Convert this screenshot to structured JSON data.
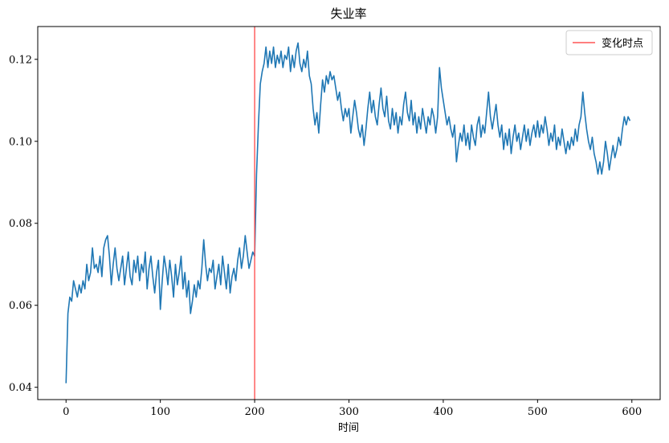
{
  "chart_data": {
    "type": "line",
    "title": "失业率",
    "xlabel": "时间",
    "ylabel": "",
    "xlim": [
      -30,
      630
    ],
    "ylim": [
      0.037,
      0.128
    ],
    "xticks": [
      0,
      100,
      200,
      300,
      400,
      500,
      600
    ],
    "yticks": [
      0.04,
      0.06,
      0.08,
      0.1,
      0.12
    ],
    "xtick_labels": [
      "0",
      "100",
      "200",
      "300",
      "400",
      "500",
      "600"
    ],
    "ytick_labels": [
      "0.04",
      "0.06",
      "0.08",
      "0.10",
      "0.12"
    ],
    "grid": false,
    "legend_position": "top-right",
    "series": [
      {
        "color": "#1f77b4",
        "points": [
          [
            0,
            0.041
          ],
          [
            2,
            0.058
          ],
          [
            4,
            0.062
          ],
          [
            6,
            0.061
          ],
          [
            8,
            0.066
          ],
          [
            10,
            0.064
          ],
          [
            12,
            0.062
          ],
          [
            14,
            0.065
          ],
          [
            16,
            0.063
          ],
          [
            18,
            0.066
          ],
          [
            20,
            0.064
          ],
          [
            22,
            0.07
          ],
          [
            24,
            0.066
          ],
          [
            26,
            0.068
          ],
          [
            28,
            0.074
          ],
          [
            30,
            0.069
          ],
          [
            32,
            0.07
          ],
          [
            34,
            0.068
          ],
          [
            36,
            0.072
          ],
          [
            38,
            0.067
          ],
          [
            40,
            0.074
          ],
          [
            42,
            0.076
          ],
          [
            44,
            0.077
          ],
          [
            46,
            0.072
          ],
          [
            48,
            0.065
          ],
          [
            50,
            0.07
          ],
          [
            52,
            0.074
          ],
          [
            54,
            0.069
          ],
          [
            56,
            0.066
          ],
          [
            58,
            0.069
          ],
          [
            60,
            0.072
          ],
          [
            62,
            0.065
          ],
          [
            64,
            0.069
          ],
          [
            66,
            0.073
          ],
          [
            68,
            0.067
          ],
          [
            70,
            0.065
          ],
          [
            72,
            0.071
          ],
          [
            74,
            0.068
          ],
          [
            76,
            0.072
          ],
          [
            78,
            0.066
          ],
          [
            80,
            0.07
          ],
          [
            82,
            0.068
          ],
          [
            84,
            0.073
          ],
          [
            86,
            0.064
          ],
          [
            88,
            0.069
          ],
          [
            90,
            0.072
          ],
          [
            92,
            0.067
          ],
          [
            94,
            0.063
          ],
          [
            96,
            0.068
          ],
          [
            98,
            0.071
          ],
          [
            100,
            0.059
          ],
          [
            102,
            0.066
          ],
          [
            104,
            0.072
          ],
          [
            106,
            0.069
          ],
          [
            108,
            0.065
          ],
          [
            110,
            0.071
          ],
          [
            112,
            0.067
          ],
          [
            114,
            0.062
          ],
          [
            116,
            0.07
          ],
          [
            118,
            0.065
          ],
          [
            120,
            0.068
          ],
          [
            122,
            0.072
          ],
          [
            124,
            0.064
          ],
          [
            126,
            0.068
          ],
          [
            128,
            0.062
          ],
          [
            130,
            0.066
          ],
          [
            132,
            0.058
          ],
          [
            134,
            0.061
          ],
          [
            136,
            0.065
          ],
          [
            138,
            0.062
          ],
          [
            140,
            0.066
          ],
          [
            142,
            0.064
          ],
          [
            144,
            0.069
          ],
          [
            146,
            0.076
          ],
          [
            148,
            0.07
          ],
          [
            150,
            0.066
          ],
          [
            152,
            0.069
          ],
          [
            154,
            0.068
          ],
          [
            156,
            0.071
          ],
          [
            158,
            0.064
          ],
          [
            160,
            0.067
          ],
          [
            162,
            0.07
          ],
          [
            164,
            0.065
          ],
          [
            166,
            0.072
          ],
          [
            168,
            0.068
          ],
          [
            170,
            0.064
          ],
          [
            172,
            0.07
          ],
          [
            174,
            0.063
          ],
          [
            176,
            0.067
          ],
          [
            178,
            0.069
          ],
          [
            180,
            0.066
          ],
          [
            182,
            0.071
          ],
          [
            184,
            0.074
          ],
          [
            186,
            0.069
          ],
          [
            188,
            0.072
          ],
          [
            190,
            0.077
          ],
          [
            192,
            0.073
          ],
          [
            194,
            0.069
          ],
          [
            196,
            0.071
          ],
          [
            198,
            0.073
          ],
          [
            200,
            0.072
          ],
          [
            202,
            0.092
          ],
          [
            204,
            0.104
          ],
          [
            206,
            0.114
          ],
          [
            208,
            0.117
          ],
          [
            210,
            0.119
          ],
          [
            212,
            0.123
          ],
          [
            214,
            0.118
          ],
          [
            216,
            0.122
          ],
          [
            218,
            0.119
          ],
          [
            220,
            0.123
          ],
          [
            222,
            0.118
          ],
          [
            224,
            0.121
          ],
          [
            226,
            0.119
          ],
          [
            228,
            0.122
          ],
          [
            230,
            0.118
          ],
          [
            232,
            0.121
          ],
          [
            234,
            0.12
          ],
          [
            236,
            0.123
          ],
          [
            238,
            0.117
          ],
          [
            240,
            0.121
          ],
          [
            242,
            0.118
          ],
          [
            244,
            0.122
          ],
          [
            246,
            0.124
          ],
          [
            248,
            0.119
          ],
          [
            250,
            0.117
          ],
          [
            252,
            0.12
          ],
          [
            254,
            0.118
          ],
          [
            256,
            0.122
          ],
          [
            258,
            0.116
          ],
          [
            260,
            0.114
          ],
          [
            262,
            0.108
          ],
          [
            264,
            0.104
          ],
          [
            266,
            0.107
          ],
          [
            268,
            0.102
          ],
          [
            270,
            0.109
          ],
          [
            272,
            0.115
          ],
          [
            274,
            0.112
          ],
          [
            276,
            0.116
          ],
          [
            278,
            0.114
          ],
          [
            280,
            0.117
          ],
          [
            282,
            0.115
          ],
          [
            284,
            0.116
          ],
          [
            286,
            0.113
          ],
          [
            288,
            0.11
          ],
          [
            290,
            0.112
          ],
          [
            292,
            0.108
          ],
          [
            294,
            0.105
          ],
          [
            296,
            0.108
          ],
          [
            298,
            0.106
          ],
          [
            300,
            0.108
          ],
          [
            302,
            0.102
          ],
          [
            304,
            0.106
          ],
          [
            306,
            0.11
          ],
          [
            308,
            0.107
          ],
          [
            310,
            0.103
          ],
          [
            312,
            0.101
          ],
          [
            314,
            0.104
          ],
          [
            316,
            0.099
          ],
          [
            318,
            0.103
          ],
          [
            320,
            0.108
          ],
          [
            322,
            0.112
          ],
          [
            324,
            0.107
          ],
          [
            326,
            0.11
          ],
          [
            328,
            0.106
          ],
          [
            330,
            0.104
          ],
          [
            332,
            0.109
          ],
          [
            334,
            0.113
          ],
          [
            336,
            0.108
          ],
          [
            338,
            0.106
          ],
          [
            340,
            0.111
          ],
          [
            342,
            0.105
          ],
          [
            344,
            0.103
          ],
          [
            346,
            0.108
          ],
          [
            348,
            0.104
          ],
          [
            350,
            0.107
          ],
          [
            352,
            0.102
          ],
          [
            354,
            0.106
          ],
          [
            356,
            0.104
          ],
          [
            358,
            0.109
          ],
          [
            360,
            0.112
          ],
          [
            362,
            0.107
          ],
          [
            364,
            0.105
          ],
          [
            366,
            0.11
          ],
          [
            368,
            0.104
          ],
          [
            370,
            0.107
          ],
          [
            372,
            0.102
          ],
          [
            374,
            0.106
          ],
          [
            376,
            0.103
          ],
          [
            378,
            0.108
          ],
          [
            380,
            0.105
          ],
          [
            382,
            0.102
          ],
          [
            384,
            0.106
          ],
          [
            386,
            0.104
          ],
          [
            388,
            0.108
          ],
          [
            390,
            0.106
          ],
          [
            392,
            0.102
          ],
          [
            394,
            0.106
          ],
          [
            396,
            0.118
          ],
          [
            398,
            0.113
          ],
          [
            400,
            0.11
          ],
          [
            402,
            0.107
          ],
          [
            404,
            0.104
          ],
          [
            406,
            0.106
          ],
          [
            408,
            0.103
          ],
          [
            410,
            0.101
          ],
          [
            412,
            0.104
          ],
          [
            414,
            0.095
          ],
          [
            416,
            0.099
          ],
          [
            418,
            0.102
          ],
          [
            420,
            0.1
          ],
          [
            422,
            0.104
          ],
          [
            424,
            0.099
          ],
          [
            426,
            0.102
          ],
          [
            428,
            0.098
          ],
          [
            430,
            0.104
          ],
          [
            432,
            0.101
          ],
          [
            434,
            0.099
          ],
          [
            436,
            0.104
          ],
          [
            438,
            0.106
          ],
          [
            440,
            0.101
          ],
          [
            442,
            0.104
          ],
          [
            444,
            0.102
          ],
          [
            446,
            0.107
          ],
          [
            448,
            0.112
          ],
          [
            450,
            0.106
          ],
          [
            452,
            0.103
          ],
          [
            454,
            0.106
          ],
          [
            456,
            0.109
          ],
          [
            458,
            0.104
          ],
          [
            460,
            0.101
          ],
          [
            462,
            0.104
          ],
          [
            464,
            0.098
          ],
          [
            466,
            0.102
          ],
          [
            468,
            0.099
          ],
          [
            470,
            0.103
          ],
          [
            472,
            0.097
          ],
          [
            474,
            0.101
          ],
          [
            476,
            0.104
          ],
          [
            478,
            0.1
          ],
          [
            480,
            0.102
          ],
          [
            482,
            0.098
          ],
          [
            484,
            0.101
          ],
          [
            486,
            0.104
          ],
          [
            488,
            0.1
          ],
          [
            490,
            0.103
          ],
          [
            492,
            0.099
          ],
          [
            494,
            0.102
          ],
          [
            496,
            0.104
          ],
          [
            498,
            0.101
          ],
          [
            500,
            0.105
          ],
          [
            502,
            0.101
          ],
          [
            504,
            0.104
          ],
          [
            506,
            0.102
          ],
          [
            508,
            0.106
          ],
          [
            510,
            0.103
          ],
          [
            512,
            0.099
          ],
          [
            514,
            0.102
          ],
          [
            516,
            0.1
          ],
          [
            518,
            0.104
          ],
          [
            520,
            0.098
          ],
          [
            522,
            0.101
          ],
          [
            524,
            0.099
          ],
          [
            526,
            0.103
          ],
          [
            528,
            0.1
          ],
          [
            530,
            0.097
          ],
          [
            532,
            0.1
          ],
          [
            534,
            0.098
          ],
          [
            536,
            0.101
          ],
          [
            538,
            0.099
          ],
          [
            540,
            0.103
          ],
          [
            542,
            0.1
          ],
          [
            544,
            0.104
          ],
          [
            546,
            0.106
          ],
          [
            548,
            0.112
          ],
          [
            550,
            0.107
          ],
          [
            552,
            0.103
          ],
          [
            554,
            0.1
          ],
          [
            556,
            0.098
          ],
          [
            558,
            0.101
          ],
          [
            560,
            0.097
          ],
          [
            562,
            0.095
          ],
          [
            564,
            0.092
          ],
          [
            566,
            0.095
          ],
          [
            568,
            0.092
          ],
          [
            570,
            0.095
          ],
          [
            572,
            0.1
          ],
          [
            574,
            0.097
          ],
          [
            576,
            0.093
          ],
          [
            578,
            0.096
          ],
          [
            580,
            0.099
          ],
          [
            582,
            0.096
          ],
          [
            584,
            0.098
          ],
          [
            586,
            0.101
          ],
          [
            588,
            0.099
          ],
          [
            590,
            0.103
          ],
          [
            592,
            0.106
          ],
          [
            594,
            0.104
          ],
          [
            596,
            0.106
          ],
          [
            598,
            0.105
          ]
        ]
      },
      {
        "name": "变化时点",
        "type": "vline",
        "x": 200,
        "color": "#ff5555"
      }
    ]
  }
}
